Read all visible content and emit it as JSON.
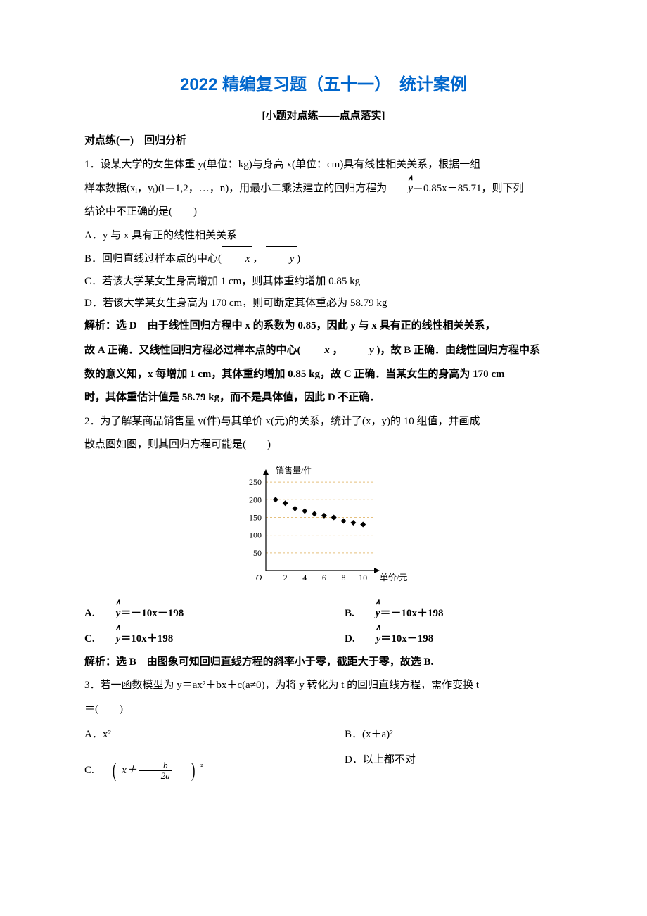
{
  "title": "2022 精编复习题（五十一）　统计案例",
  "title_color": "#0066cc",
  "subtitle": "[小题对点练——点点落实]",
  "section1": "对点练(一)　回归分析",
  "q1": {
    "stem1": "1．设某大学的女生体重 y(单位：kg)与身高 x(单位：cm)具有线性相关关系，根据一组",
    "stem2a": "样本数据(xᵢ，yᵢ)(i＝1,2，…，n)，用最小二乘法建立的回归方程为",
    "stem2b": "＝0.85x－85.71，则下列",
    "stem3": "结论中不正确的是(　　)",
    "A": "A．y 与 x 具有正的线性相关关系",
    "B1": "B．回归直线过样本点的中心(",
    "B2": "，",
    "B3": ")",
    "C": "C．若该大学某女生身高增加 1 cm，则其体重约增加 0.85 kg",
    "D": "D．若该大学某女生身高为 170 cm，则可断定其体重必为 58.79 kg",
    "sol1": "解析：选 D　由于线性回归方程中 x 的系数为 0.85，因此 y 与 x 具有正的线性相关关系，",
    "sol2a": "故 A 正确．又线性回归方程必过样本点的中心(",
    "sol2b": "，",
    "sol2c": ")，故 B 正确．由线性回归方程中系",
    "sol3": "数的意义知，x 每增加 1 cm，其体重约增加 0.85 kg，故 C 正确．当某女生的身高为 170 cm",
    "sol4": "时，其体重估计值是 58.79 kg，而不是具体值，因此 D 不正确．"
  },
  "q2": {
    "stem1": "2．为了解某商品销售量 y(件)与其单价 x(元)的关系，统计了(x，y)的 10 组值，并画成",
    "stem2": "散点图如图，则其回归方程可能是(　　)",
    "A": "＝－10x－198",
    "B": "＝－10x＋198",
    "C": "＝10x＋198",
    "D": "＝10x－198",
    "sol": "解析：选 B　由图象可知回归直线方程的斜率小于零，截距大于零，故选 B."
  },
  "q3": {
    "stem1": "3．若一函数模型为 y＝ax²＋bx＋c(a≠0)，为将 y 转化为 t 的回归直线方程，需作变换 t",
    "stem2": "＝(　　)",
    "A": "A．x²",
    "B": "B．(x＋a)²",
    "C1": "C.",
    "C2": "x＋",
    "Cnum": "b",
    "Cden": "2a",
    "C3": "²",
    "D": "D．以上都不对"
  },
  "chart": {
    "ylabel": "销售量/件",
    "xlabel": "单价/元",
    "yticks": [
      50,
      100,
      150,
      200,
      250
    ],
    "xticks": [
      2,
      4,
      6,
      8,
      10
    ],
    "xmax": 11,
    "ymax": 270,
    "points": [
      [
        1,
        200
      ],
      [
        2,
        190
      ],
      [
        3,
        175
      ],
      [
        4,
        168
      ],
      [
        5,
        160
      ],
      [
        6,
        155
      ],
      [
        7,
        150
      ],
      [
        8,
        140
      ],
      [
        9,
        135
      ],
      [
        10,
        130
      ]
    ],
    "point_color": "#000000",
    "grid_color": "#e5c07e",
    "axis_color": "#000000",
    "fontsize": 12
  }
}
